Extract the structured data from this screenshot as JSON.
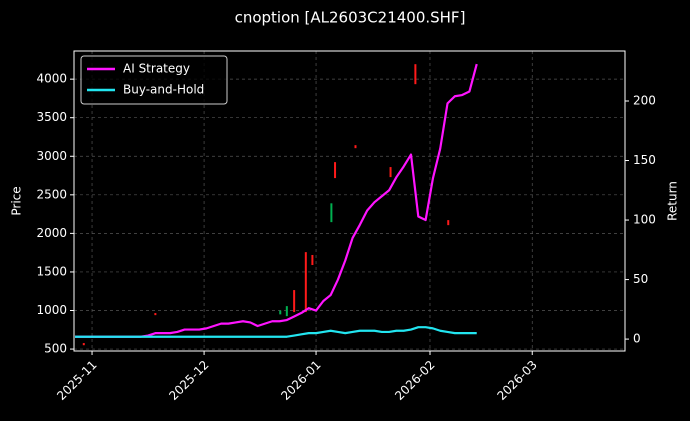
{
  "chart_data": {
    "type": "candlestick",
    "title": "cnoption [AL2603C21400.SHF]",
    "ylabel": "Price",
    "y2label": "Return",
    "xlim": [
      -0.14,
      75.3
    ],
    "xticks": [
      {
        "value": 2.33,
        "label": "2025-11"
      },
      {
        "value": 17.67,
        "label": "2025-12"
      },
      {
        "value": 33.0,
        "label": "2026-01"
      },
      {
        "value": 48.6,
        "label": "2026-02"
      },
      {
        "value": 62.6,
        "label": "2026-03"
      }
    ],
    "ylim": [
      475,
      4365
    ],
    "yticks": [
      500,
      1000,
      1500,
      2000,
      2500,
      3000,
      3500,
      4000
    ],
    "y2lim": [
      -10,
      242
    ],
    "y2ticks": [
      0,
      50,
      100,
      150,
      200
    ],
    "grid": true,
    "legend": "upper left",
    "candles": {
      "up_color": "#00b050",
      "down_color": "#ff1a1a",
      "x": [
        1.2,
        11.0,
        28.1,
        29.0,
        30.0,
        31.6,
        32.5,
        35.1,
        35.6,
        38.4,
        43.2,
        46.6,
        51.1
      ],
      "open": [
        578,
        967,
        950,
        927,
        1265,
        1757,
        1720,
        2146,
        2924,
        3144,
        2860,
        4194,
        2172
      ],
      "close": [
        550,
        940,
        1000,
        1057,
        980,
        980,
        1590,
        2390,
        2717,
        3105,
        2730,
        3935,
        2107
      ]
    },
    "series": [
      {
        "name": "AI Strategy",
        "color": "#ff14ff",
        "axis": "y2",
        "values": [
          2,
          2,
          2,
          2,
          2,
          2,
          2,
          2,
          2,
          2,
          3,
          5,
          5,
          5,
          6,
          8,
          8,
          8,
          9,
          11,
          13,
          13,
          14,
          15,
          14,
          11,
          13,
          15,
          15,
          16,
          19,
          22,
          26,
          24,
          32,
          37,
          50,
          66,
          85,
          96,
          108,
          115,
          120,
          125,
          136,
          145,
          155,
          103,
          100,
          135,
          160,
          198,
          204,
          205,
          208,
          231
        ]
      },
      {
        "name": "Buy-and-Hold",
        "color": "#22e5f0",
        "axis": "y2",
        "values": [
          2,
          2,
          2,
          2,
          2,
          2,
          2,
          2,
          2,
          2,
          2,
          2,
          2,
          2,
          2,
          2,
          2,
          2,
          2,
          2,
          2,
          2,
          2,
          2,
          2,
          2,
          2,
          2,
          2,
          2,
          3,
          4,
          5,
          5,
          6,
          7,
          6,
          5,
          6,
          7,
          7,
          7,
          6,
          6,
          7,
          7,
          8,
          10,
          10,
          9,
          7,
          6,
          5,
          5,
          5,
          5
        ]
      }
    ]
  }
}
